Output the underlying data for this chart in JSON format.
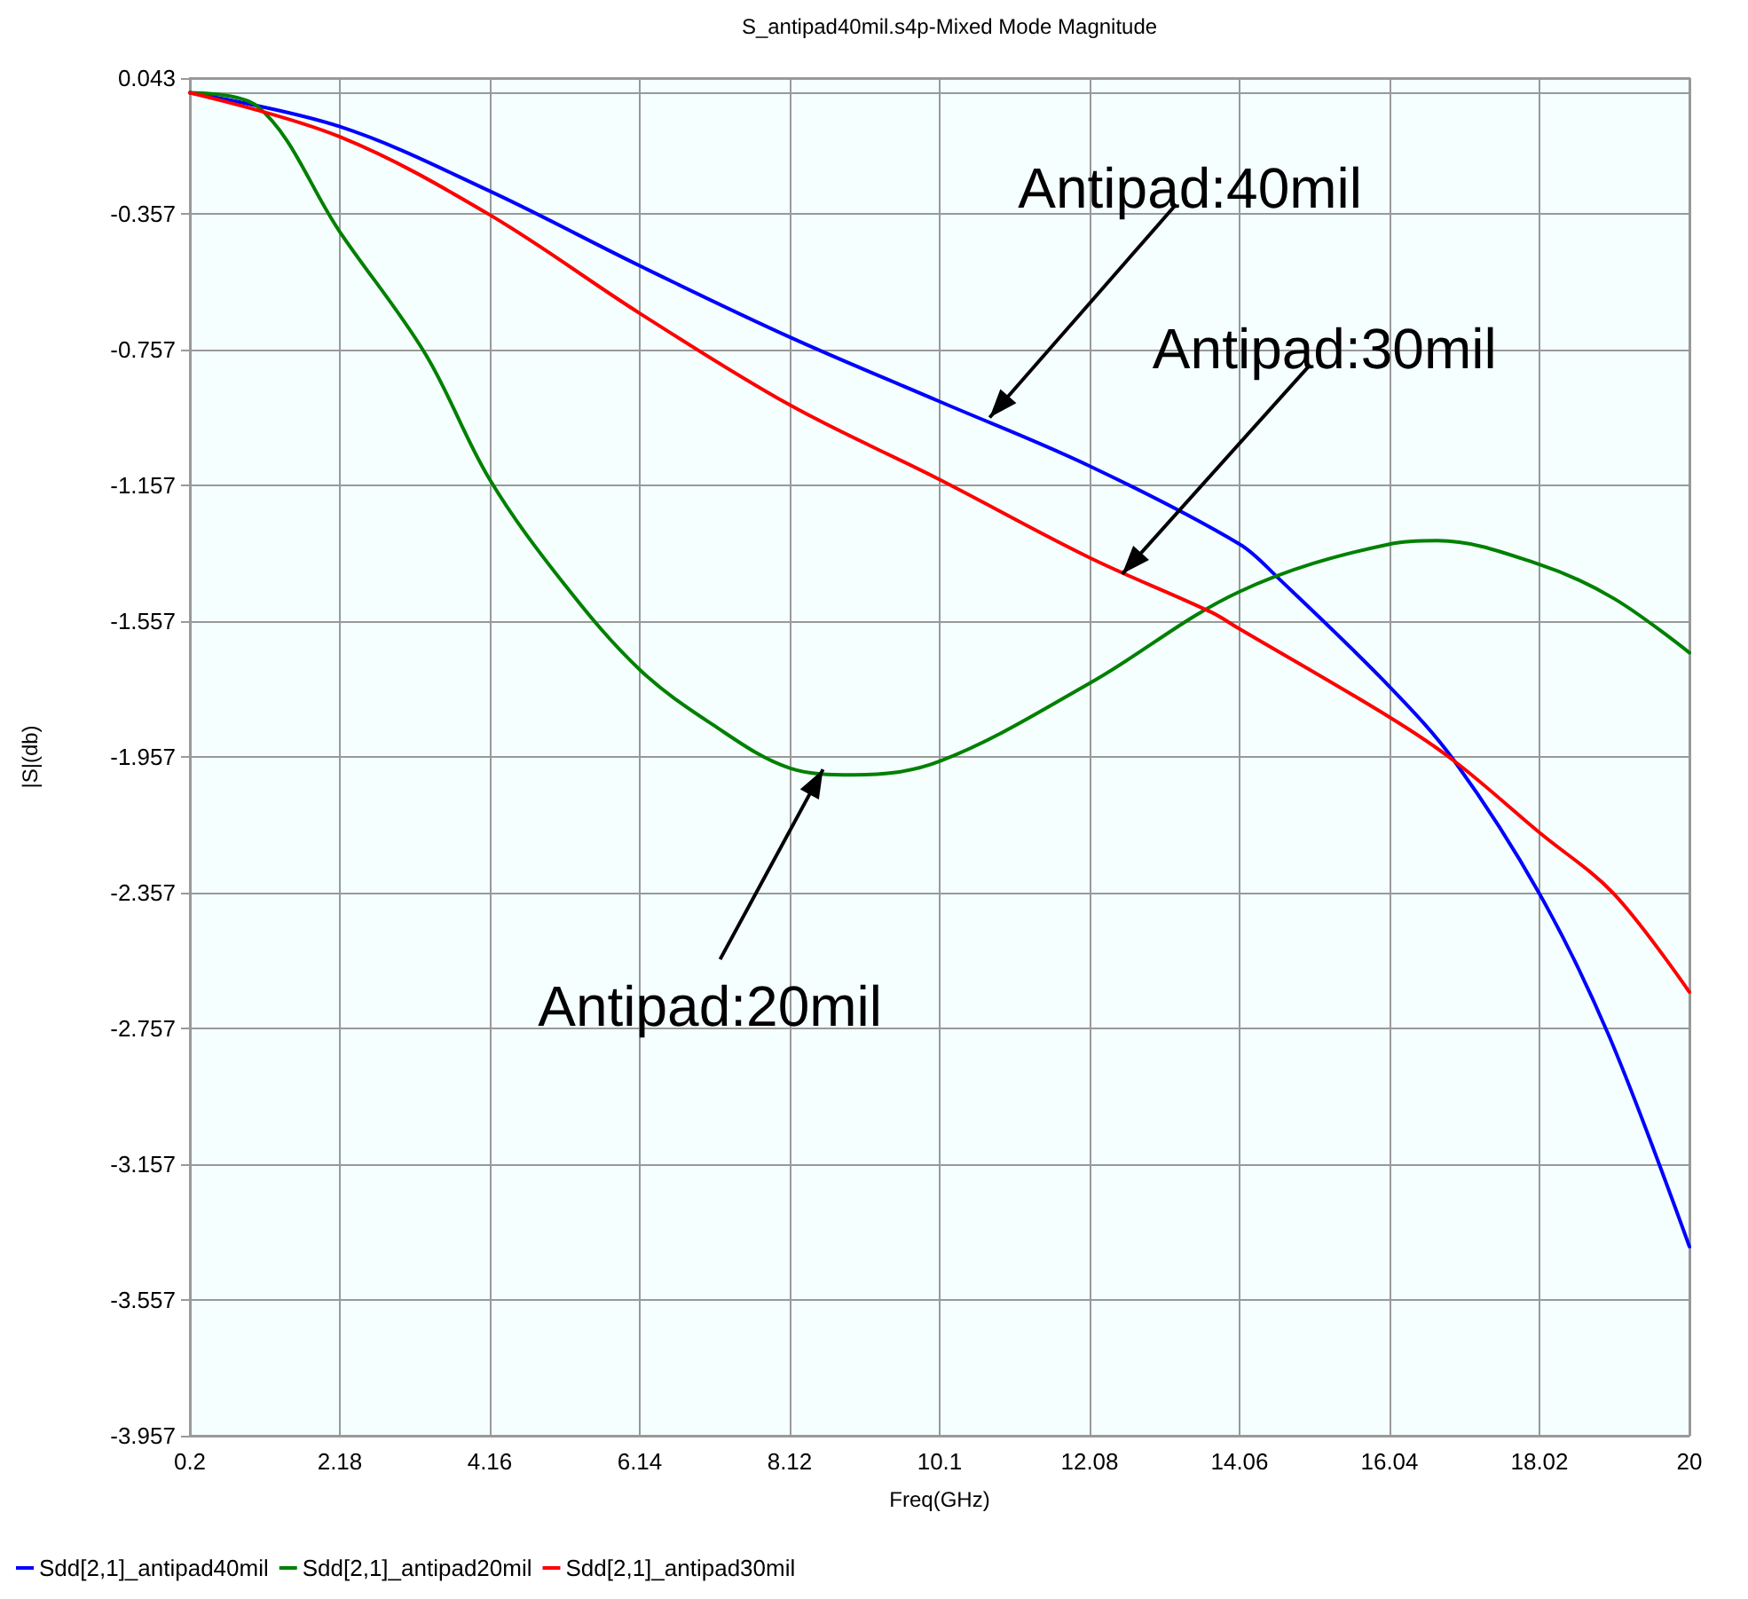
{
  "chart_data": {
    "type": "line",
    "title": "S_antipad40mil.s4p-Mixed Mode Magnitude",
    "xlabel": "Freq(GHz)",
    "ylabel": "|S|(db)",
    "xlim": [
      0.2,
      20
    ],
    "xticks": [
      0.2,
      2.18,
      4.16,
      6.14,
      8.12,
      10.1,
      12.08,
      14.06,
      16.04,
      18.02,
      20
    ],
    "ylim": [
      -3.957,
      0.043
    ],
    "yticks": [
      0.043,
      -0.357,
      -0.757,
      -1.157,
      -1.557,
      -1.957,
      -2.357,
      -2.757,
      -3.157,
      -3.557,
      -3.957
    ],
    "grid": true,
    "legend": "bottom left",
    "marker": "none",
    "line_style": "solid",
    "series": [
      {
        "name": "Sdd[2,1]_antipad40mil",
        "color": "#0000ff",
        "x": [
          0.2,
          2.18,
          4.16,
          6.14,
          8.12,
          10.1,
          12.08,
          14.06,
          14.57,
          16.04,
          16.9,
          18.02,
          18.94,
          20
        ],
        "values": [
          0.0,
          -0.1,
          -0.29,
          -0.51,
          -0.72,
          -0.91,
          -1.1,
          -1.33,
          -1.43,
          -1.75,
          -1.97,
          -2.36,
          -2.78,
          -3.4
        ]
      },
      {
        "name": "Sdd[2,1]_antipad20mil",
        "color": "#008000",
        "x": [
          0.2,
          1.09,
          2.18,
          3.31,
          4.16,
          5.15,
          6.14,
          7.09,
          8.12,
          8.96,
          10.1,
          12.08,
          14.06,
          16.04,
          16.67,
          18.02,
          19.0,
          20
        ],
        "values": [
          0.0,
          -0.04,
          -0.41,
          -0.77,
          -1.14,
          -1.45,
          -1.7,
          -1.86,
          -1.99,
          -2.01,
          -1.97,
          -1.74,
          -1.47,
          -1.33,
          -1.32,
          -1.39,
          -1.49,
          -1.65
        ]
      },
      {
        "name": "Sdd[2,1]_antipad30mil",
        "color": "#ff0000",
        "x": [
          0.2,
          2.18,
          4.16,
          6.14,
          8.12,
          10.1,
          12.08,
          13.68,
          14.06,
          16.04,
          16.9,
          18.02,
          19.0,
          20
        ],
        "values": [
          0.0,
          -0.13,
          -0.36,
          -0.65,
          -0.92,
          -1.14,
          -1.37,
          -1.53,
          -1.58,
          -1.84,
          -1.97,
          -2.18,
          -2.36,
          -2.65
        ]
      }
    ],
    "annotations": [
      {
        "text": "Antipad:40mil",
        "x": 10.76,
        "y": -0.957
      },
      {
        "text": "Antipad:30mil",
        "x": 12.51,
        "y": -1.418
      },
      {
        "text": "Antipad:20mil",
        "x": 8.56,
        "y": -1.994
      }
    ]
  }
}
